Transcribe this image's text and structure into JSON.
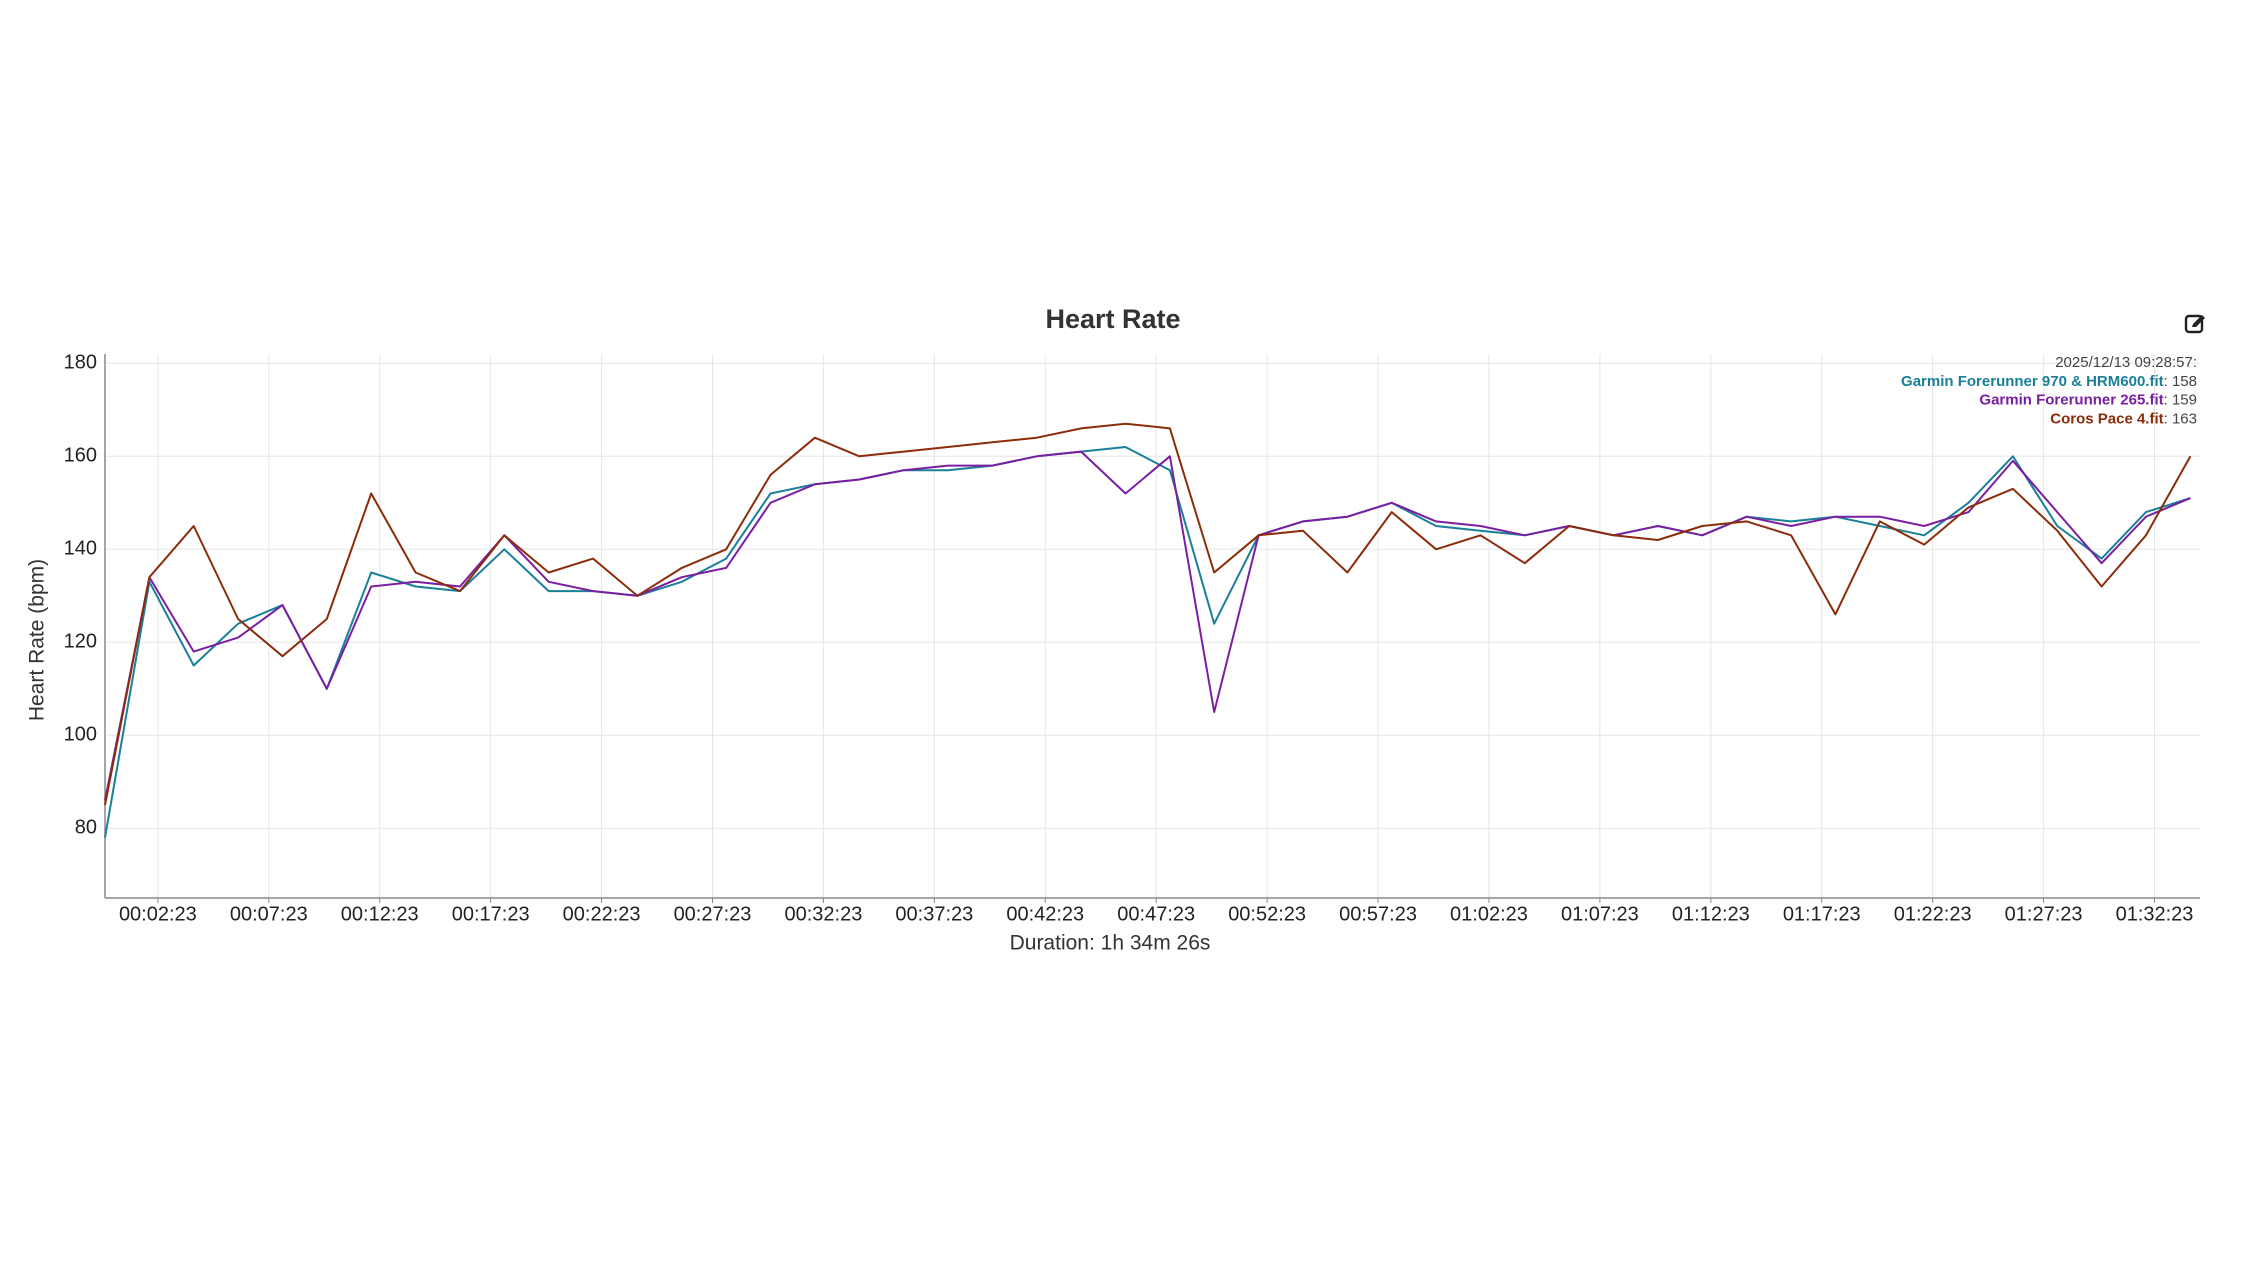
{
  "chart_data": {
    "type": "line",
    "title": "Heart Rate",
    "y_label": "Heart Rate (bpm)",
    "x_label": "Duration: 1h 34m 26s",
    "x": [
      0,
      120,
      240,
      360,
      480,
      600,
      720,
      840,
      960,
      1080,
      1200,
      1320,
      1440,
      1560,
      1680,
      1800,
      1920,
      2040,
      2160,
      2280,
      2400,
      2520,
      2640,
      2760,
      2880,
      3000,
      3120,
      3240,
      3360,
      3480,
      3600,
      3720,
      3840,
      3960,
      4080,
      4200,
      4320,
      4440,
      4560,
      4680,
      4800,
      4920,
      5040,
      5160,
      5280,
      5400,
      5520,
      5640
    ],
    "series": [
      {
        "name": "Garmin Forerunner 970 & HRM600.fit",
        "color": "#1a7f99",
        "values": [
          78,
          133,
          115,
          124,
          128,
          110,
          135,
          132,
          131,
          140,
          131,
          131,
          130,
          133,
          138,
          152,
          154,
          155,
          157,
          157,
          158,
          160,
          161,
          162,
          157,
          124,
          143,
          146,
          147,
          150,
          145,
          144,
          143,
          145,
          143,
          145,
          143,
          147,
          146,
          147,
          145,
          143,
          150,
          160,
          145,
          138,
          148,
          151
        ]
      },
      {
        "name": "Garmin Forerunner 265.fit",
        "color": "#7b1fa2",
        "values": [
          86,
          134,
          118,
          121,
          128,
          110,
          132,
          133,
          132,
          143,
          133,
          131,
          130,
          134,
          136,
          150,
          154,
          155,
          157,
          158,
          158,
          160,
          161,
          152,
          160,
          105,
          143,
          146,
          147,
          150,
          146,
          145,
          143,
          145,
          143,
          145,
          143,
          147,
          145,
          147,
          147,
          145,
          148,
          159,
          148,
          137,
          147,
          151
        ]
      },
      {
        "name": "Coros Pace 4.fit",
        "color": "#8b2c0a",
        "values": [
          85,
          134,
          145,
          125,
          117,
          125,
          152,
          135,
          131,
          143,
          135,
          138,
          130,
          136,
          140,
          156,
          164,
          160,
          161,
          162,
          163,
          164,
          166,
          167,
          166,
          135,
          143,
          144,
          135,
          148,
          140,
          143,
          137,
          145,
          143,
          142,
          145,
          146,
          143,
          126,
          146,
          141,
          149,
          153,
          144,
          132,
          143,
          160
        ]
      }
    ],
    "xlim": [
      0,
      5666
    ],
    "xticks": [
      {
        "value": 143,
        "label": "00:02:23"
      },
      {
        "value": 443,
        "label": "00:07:23"
      },
      {
        "value": 743,
        "label": "00:12:23"
      },
      {
        "value": 1043,
        "label": "00:17:23"
      },
      {
        "value": 1343,
        "label": "00:22:23"
      },
      {
        "value": 1643,
        "label": "00:27:23"
      },
      {
        "value": 1943,
        "label": "00:32:23"
      },
      {
        "value": 2243,
        "label": "00:37:23"
      },
      {
        "value": 2543,
        "label": "00:42:23"
      },
      {
        "value": 2843,
        "label": "00:47:23"
      },
      {
        "value": 3143,
        "label": "00:52:23"
      },
      {
        "value": 3443,
        "label": "00:57:23"
      },
      {
        "value": 3743,
        "label": "01:02:23"
      },
      {
        "value": 4043,
        "label": "01:07:23"
      },
      {
        "value": 4343,
        "label": "01:12:23"
      },
      {
        "value": 4643,
        "label": "01:17:23"
      },
      {
        "value": 4943,
        "label": "01:22:23"
      },
      {
        "value": 5243,
        "label": "01:27:23"
      },
      {
        "value": 5543,
        "label": "01:32:23"
      }
    ],
    "ylim": [
      65,
      182
    ],
    "yticks": [
      80,
      100,
      120,
      140,
      160,
      180
    ],
    "grid": true,
    "tooltip": {
      "title": "2025/12/13 09:28:57:",
      "values": [
        158,
        159,
        163
      ],
      "value_labels": [
        ": 158",
        ": 159",
        ": 163"
      ]
    }
  }
}
